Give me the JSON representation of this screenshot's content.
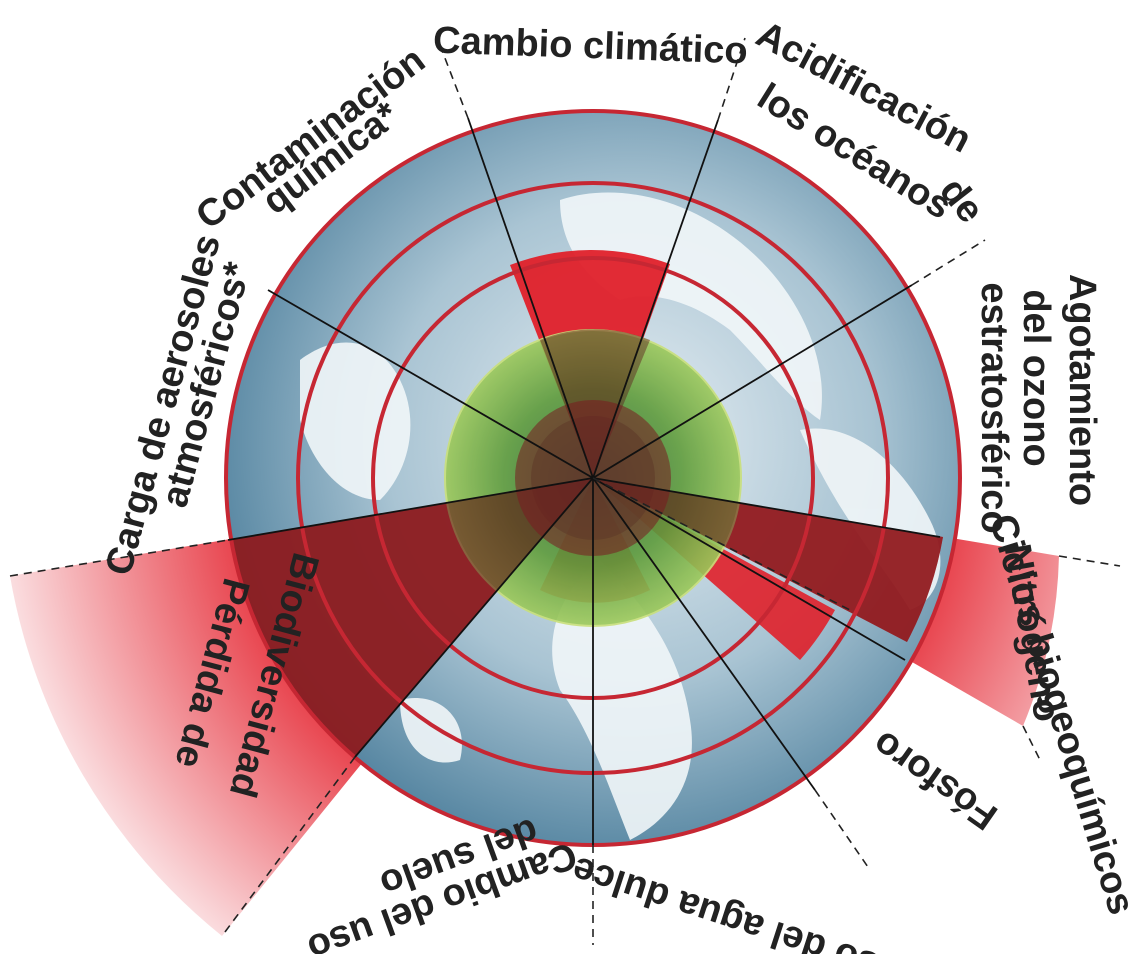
{
  "labels": {
    "cambio_climatico": "Cambio climático",
    "acidificacion_1": "Acidificación",
    "acidificacion_2": "de",
    "acidificacion_3": "los océanos",
    "agotamiento_1": "Agotamiento",
    "agotamiento_2": "del ozono",
    "agotamiento_3": "estratosférico",
    "contaminacion_1": "Contaminación",
    "contaminacion_2": "química*",
    "aerosoles_1": "Carga de aerosoles",
    "aerosoles_2": "atmosféricos*",
    "ciclos": "Ciclos biogeoquímicos",
    "nitrogeno": "Nitrógeno",
    "fosforo": "Fósforo",
    "agua": "Uso del agua dulce",
    "suelo_1": "Cambio del uso",
    "suelo_2": "del suelo",
    "biodiversidad_1": "Pérdida de",
    "biodiversidad_2": "Biodiversidad"
  },
  "colors": {
    "boundary_ring": "#c62733",
    "safe_zone": "#8dbf3f",
    "exceeded_wedge": "#e0202a",
    "overshoot": "#e8424c",
    "globe_ocean": "#6f9bb3",
    "globe_land": "#eef4f7"
  }
}
